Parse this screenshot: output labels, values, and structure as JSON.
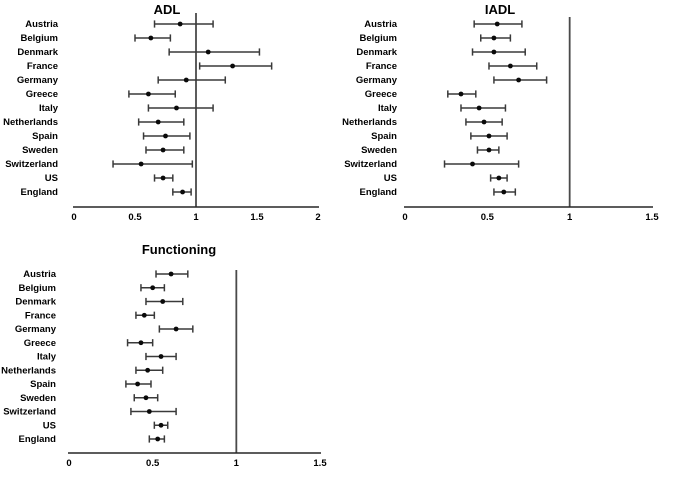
{
  "figure": {
    "background": "#ffffff",
    "colors": {
      "text": "#000000",
      "ci_line": "#3a3a3a",
      "axis_line": "#262626",
      "ref_line": "#4a4a4a",
      "point": "#0a0a0a"
    }
  },
  "chart_data": [
    {
      "type": "scatter",
      "subtype": "forest-plot",
      "title": "ADL",
      "grid": false,
      "legend": "none",
      "xlim": [
        0,
        2
      ],
      "xticks": [
        "0",
        "0.5",
        "1",
        "1.5",
        "2"
      ],
      "ref_line": 1,
      "categories": [
        "Austria",
        "Belgium",
        "Denmark",
        "France",
        "Germany",
        "Greece",
        "Italy",
        "Netherlands",
        "Spain",
        "Sweden",
        "Switzerland",
        "US",
        "England"
      ],
      "values": [
        0.87,
        0.63,
        1.1,
        1.3,
        0.92,
        0.61,
        0.84,
        0.69,
        0.75,
        0.73,
        0.55,
        0.73,
        0.89
      ],
      "ci_low": [
        0.66,
        0.5,
        0.78,
        1.03,
        0.69,
        0.45,
        0.61,
        0.53,
        0.57,
        0.59,
        0.32,
        0.66,
        0.81
      ],
      "ci_high": [
        1.14,
        0.79,
        1.52,
        1.62,
        1.24,
        0.83,
        1.14,
        0.9,
        0.95,
        0.9,
        0.97,
        0.81,
        0.96
      ]
    },
    {
      "type": "scatter",
      "subtype": "forest-plot",
      "title": "IADL",
      "grid": false,
      "legend": "none",
      "xlim": [
        0,
        1.5
      ],
      "xticks": [
        "0",
        "0.5",
        "1",
        "1.5"
      ],
      "ref_line": 1,
      "categories": [
        "Austria",
        "Belgium",
        "Denmark",
        "France",
        "Germany",
        "Greece",
        "Italy",
        "Netherlands",
        "Spain",
        "Sweden",
        "Switzerland",
        "US",
        "England"
      ],
      "values": [
        0.56,
        0.54,
        0.54,
        0.64,
        0.69,
        0.34,
        0.45,
        0.48,
        0.51,
        0.51,
        0.41,
        0.57,
        0.6
      ],
      "ci_low": [
        0.42,
        0.46,
        0.41,
        0.51,
        0.54,
        0.26,
        0.34,
        0.37,
        0.4,
        0.44,
        0.24,
        0.52,
        0.54
      ],
      "ci_high": [
        0.71,
        0.64,
        0.73,
        0.8,
        0.86,
        0.43,
        0.61,
        0.59,
        0.62,
        0.57,
        0.69,
        0.62,
        0.67
      ]
    },
    {
      "type": "scatter",
      "subtype": "forest-plot",
      "title": "Functioning",
      "grid": false,
      "legend": "none",
      "xlim": [
        0,
        1.5
      ],
      "xticks": [
        "0",
        "0.5",
        "1",
        "1.5"
      ],
      "ref_line": 1,
      "categories": [
        "Austria",
        "Belgium",
        "Denmark",
        "France",
        "Germany",
        "Greece",
        "Italy",
        "Netherlands",
        "Spain",
        "Sweden",
        "Switzerland",
        "US",
        "England"
      ],
      "values": [
        0.61,
        0.5,
        0.56,
        0.45,
        0.64,
        0.43,
        0.55,
        0.47,
        0.41,
        0.46,
        0.48,
        0.55,
        0.53
      ],
      "ci_low": [
        0.52,
        0.43,
        0.46,
        0.4,
        0.54,
        0.35,
        0.46,
        0.4,
        0.34,
        0.39,
        0.37,
        0.51,
        0.48
      ],
      "ci_high": [
        0.71,
        0.57,
        0.68,
        0.51,
        0.74,
        0.5,
        0.64,
        0.56,
        0.49,
        0.53,
        0.64,
        0.59,
        0.57
      ]
    }
  ]
}
